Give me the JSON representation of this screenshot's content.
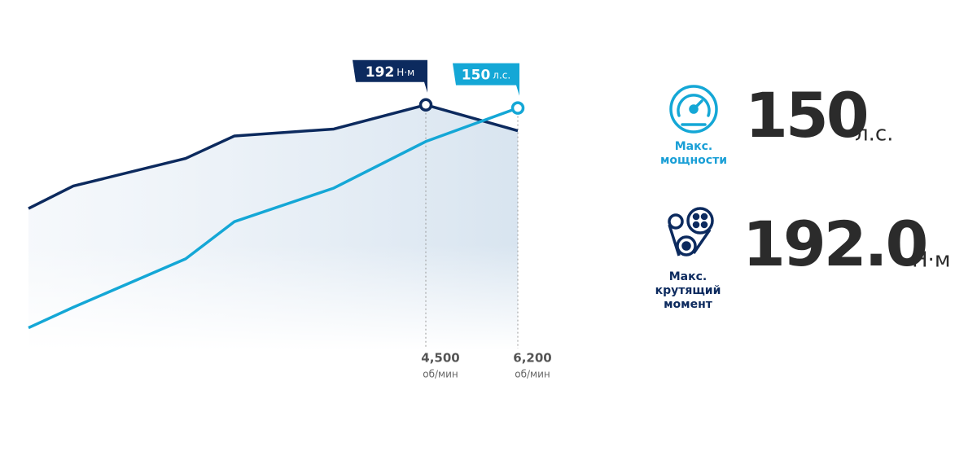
{
  "chart_data": {
    "type": "line",
    "categories": [
      null,
      null,
      null,
      null,
      null,
      "4,500",
      "6,200"
    ],
    "x_unit": "об/мин",
    "ylim": [
      50,
      215
    ],
    "y2lim": [
      20,
      173
    ],
    "series": [
      {
        "name": "Крутящий момент",
        "color": "#0c2a5e",
        "unit": "Н·м",
        "values": [
          132,
          145,
          161,
          174,
          178,
          192,
          177
        ]
      },
      {
        "name": "Мощность",
        "color": "#14a7d6",
        "unit": "л.с.",
        "axis": "y2",
        "values": [
          32,
          43,
          69,
          89,
          107,
          132,
          150
        ]
      }
    ]
  },
  "stats": [
    {
      "label": [
        "Макс.",
        "мощности"
      ],
      "value": "150",
      "unit": "л.с."
    },
    {
      "label": [
        "Макс.",
        "крутящий",
        "момент"
      ],
      "value": "192.0",
      "unit": "Н·м"
    }
  ]
}
